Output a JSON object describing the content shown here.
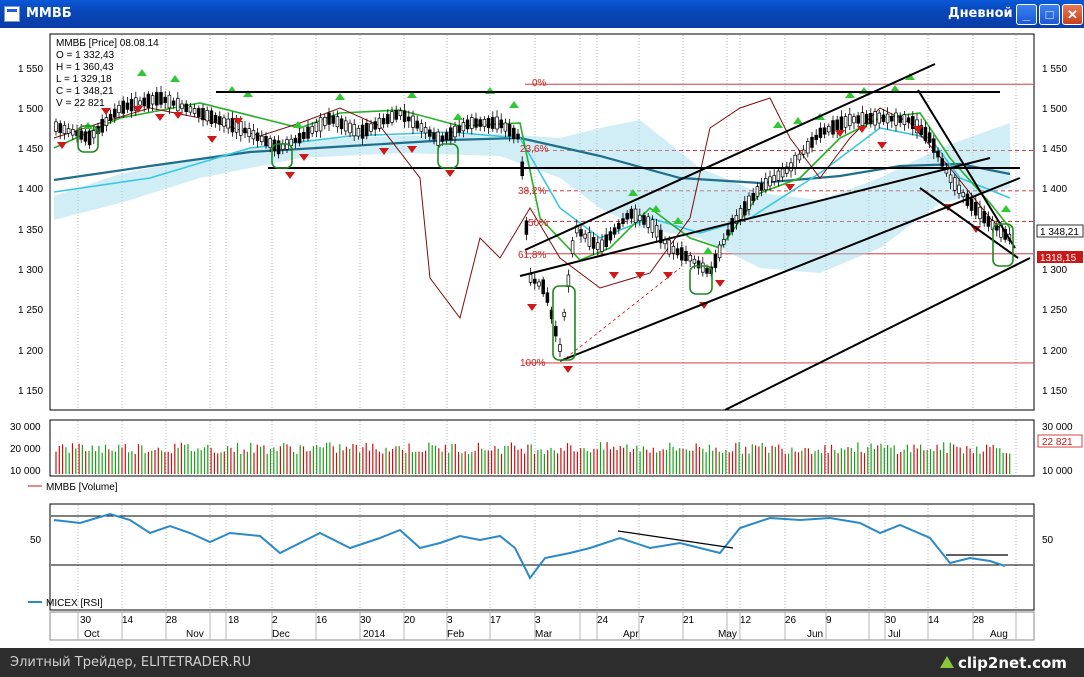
{
  "window": {
    "title": "MMBБ",
    "period": "Дневной",
    "min_label": "_",
    "max_label": "□",
    "close_label": "✕"
  },
  "price_panel": {
    "info": [
      "MMBБ [Price] 08.08.14",
      "O = 1 332,43",
      "H = 1 360,43",
      "L = 1 329,18",
      "C = 1 348,21",
      "V = 22 821"
    ],
    "ticks": [
      "1 550",
      "1 500",
      "1 450",
      "1 400",
      "1 350",
      "1 300",
      "1 250",
      "1 200",
      "1 150"
    ],
    "last_price": "1 348,21",
    "marker_price": "1318,15",
    "fib_labels": [
      "0%",
      "23,6%",
      "38,2%",
      "50%",
      "61,8%",
      "100%"
    ]
  },
  "volume_panel": {
    "ticks": [
      "30 000",
      "20 000",
      "10 000"
    ],
    "last_volume": "22 821",
    "legend": "MMBБ [Volume]"
  },
  "rsi_panel": {
    "ticks": [
      "50"
    ],
    "legend": "MICEX [RSI]"
  },
  "time_axis": {
    "days": [
      "30",
      "14",
      "28",
      "18",
      "2",
      "16",
      "30",
      "20",
      "3",
      "17",
      "3",
      "24",
      "7",
      "21",
      "12",
      "26",
      "9",
      "30",
      "14",
      "28"
    ],
    "months": [
      "Oct",
      "Nov",
      "Dec",
      "2014",
      "Feb",
      "Mar",
      "Apr",
      "May",
      "Jun",
      "Jul",
      "Aug"
    ]
  },
  "footer": {
    "text": "Элитный Трейдер, ELITETRADER.RU",
    "brand": "clip2net.com"
  },
  "colors": {
    "up": "#18a018",
    "down": "#cc1010",
    "fib": "#cc2020",
    "rsi": "#2a8ac8",
    "ma_teal": "#1f6f8c",
    "cloud": "#9ad8e8"
  }
}
